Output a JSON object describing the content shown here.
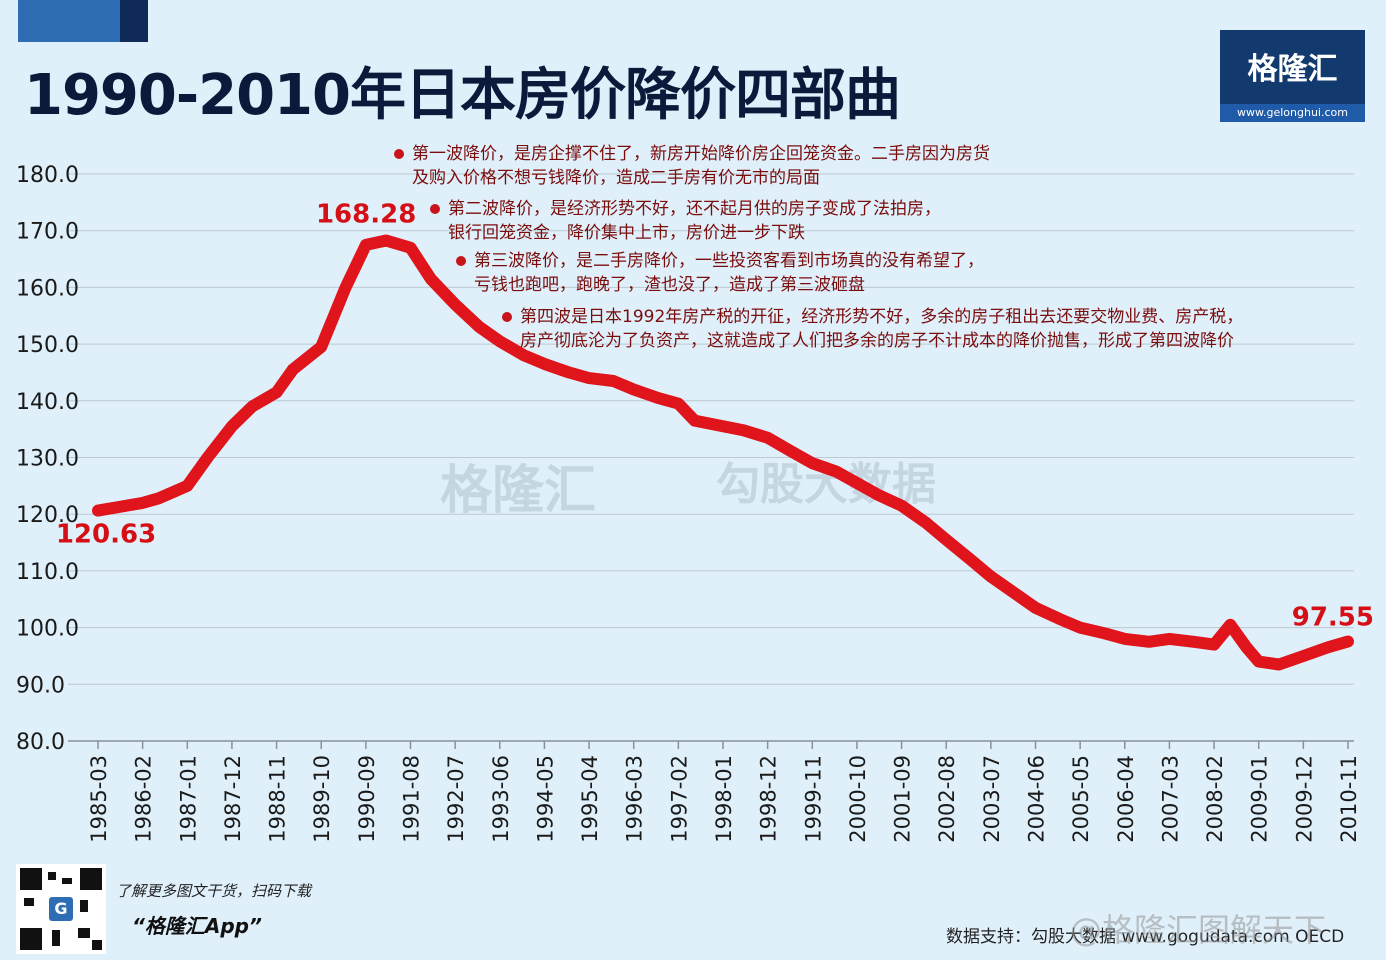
{
  "title": "1990-2010年日本房价降价四部曲",
  "logo": {
    "name": "格隆汇",
    "url": "www.gelonghui.com"
  },
  "annotations": [
    {
      "lines": [
        "第一波降价，是房企撑不住了，新房开始降价房企回笼资金。二手房因为房货",
        "及购入价格不想亏钱降价，造成二手房有价无市的局面"
      ]
    },
    {
      "lines": [
        "第二波降价，是经济形势不好，还不起月供的房子变成了法拍房，",
        "银行回笼资金，降价集中上市，房价进一步下跌"
      ]
    },
    {
      "lines": [
        "第三波降价，是二手房降价，一些投资客看到市场真的没有希望了，",
        "亏钱也跑吧，跑晚了，渣也没了，造成了第三波砸盘"
      ]
    },
    {
      "lines": [
        "第四波是日本1992年房产税的开征，经济形势不好，多余的房子租出去还要交物业费、房产税，",
        "房产彻底沦为了负资产，这就造成了人们把多余的房子不计成本的降价抛售，形成了第四波降价"
      ]
    }
  ],
  "watermark": {
    "left": "格隆汇",
    "right": "勾股大数据",
    "right_url": "www.gogudata.com",
    "weibo": "@格隆汇图解天下"
  },
  "promo": {
    "line1": "了解更多图文干货，扫码下载",
    "line2": "“格隆汇App”"
  },
  "source": "数据支持：勾股大数据 www.gogudata.com  OECD",
  "colors": {
    "line": "#e0141b",
    "label": "#d40f16",
    "title": "#0b1a3a",
    "background": "#dff0fa"
  },
  "chart_data": {
    "type": "line",
    "ylim": [
      80,
      180
    ],
    "yticks": [
      "180.0",
      "170.0",
      "160.0",
      "150.0",
      "140.0",
      "130.0",
      "120.0",
      "110.0",
      "100.0",
      "90.0",
      "80.0"
    ],
    "x_tick_labels": [
      "1985-03",
      "1986-02",
      "1987-01",
      "1987-12",
      "1988-11",
      "1989-10",
      "1990-09",
      "1991-08",
      "1992-07",
      "1993-06",
      "1994-05",
      "1995-04",
      "1996-03",
      "1997-02",
      "1998-01",
      "1998-12",
      "1999-11",
      "2000-10",
      "2001-09",
      "2002-08",
      "2003-07",
      "2004-06",
      "2005-05",
      "2006-04",
      "2007-03",
      "2008-02",
      "2009-01",
      "2009-12",
      "2010-11"
    ],
    "series": [
      {
        "x": [
          "1985-03",
          "1986-02",
          "1986-06",
          "1987-01",
          "1987-06",
          "1987-12",
          "1988-05",
          "1988-11",
          "1989-03",
          "1989-10",
          "1990-04",
          "1990-09",
          "1991-02",
          "1991-08",
          "1992-01",
          "1992-07",
          "1993-01",
          "1993-06",
          "1993-12",
          "1994-05",
          "1994-11",
          "1995-04",
          "1995-10",
          "1996-03",
          "1996-09",
          "1997-02",
          "1997-06",
          "1998-01",
          "1998-06",
          "1998-12",
          "1999-06",
          "1999-11",
          "2000-05",
          "2000-10",
          "2001-03",
          "2001-09",
          "2002-03",
          "2002-08",
          "2003-02",
          "2003-07",
          "2004-01",
          "2004-06",
          "2004-12",
          "2005-05",
          "2005-11",
          "2006-04",
          "2006-10",
          "2007-03",
          "2007-09",
          "2008-02",
          "2008-06",
          "2008-10",
          "2009-01",
          "2009-06",
          "2009-12",
          "2010-06",
          "2010-11"
        ],
        "values": [
          120.63,
          122.0,
          122.8,
          125.0,
          130.0,
          135.5,
          139.0,
          141.5,
          145.5,
          149.5,
          160.0,
          167.5,
          168.28,
          167.0,
          161.5,
          157.0,
          153.0,
          150.5,
          148.0,
          146.5,
          145.0,
          144.0,
          143.5,
          142.0,
          140.5,
          139.5,
          136.5,
          135.5,
          134.8,
          133.5,
          131.0,
          129.0,
          127.5,
          125.5,
          123.5,
          121.5,
          118.5,
          115.5,
          112.0,
          109.0,
          106.0,
          103.5,
          101.5,
          100.0,
          99.0,
          98.0,
          97.5,
          98.0,
          97.5,
          97.0,
          100.5,
          96.5,
          94.0,
          93.5,
          95.0,
          96.5,
          97.55
        ]
      }
    ],
    "value_labels": [
      {
        "x": "1985-03",
        "text": "120.63"
      },
      {
        "x": "1991-02",
        "text": "168.28"
      },
      {
        "x": "2010-11",
        "text": "97.55"
      }
    ],
    "grid": true,
    "legend": "none"
  }
}
